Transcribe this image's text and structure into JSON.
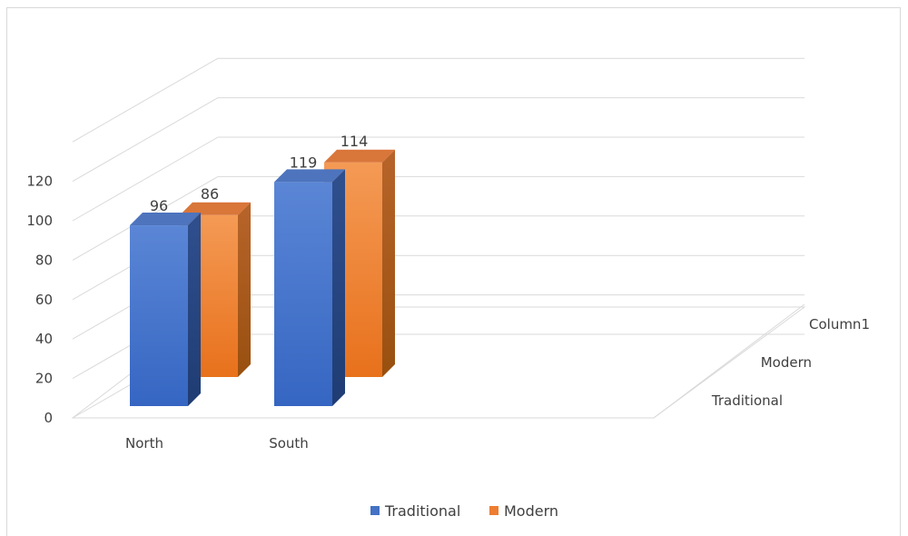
{
  "chart_data": {
    "type": "bar",
    "subtype": "3d-column",
    "title": "",
    "xlabel": "",
    "ylabel": "",
    "categories": [
      "North",
      "South"
    ],
    "series": [
      {
        "name": "Traditional",
        "values": [
          96,
          119
        ],
        "color": "#4472C4"
      },
      {
        "name": "Modern",
        "values": [
          86,
          114
        ],
        "color": "#ED7D31"
      }
    ],
    "depth_axis_labels": [
      "Traditional",
      "Modern",
      "Column1"
    ],
    "y_ticks": [
      0,
      20,
      40,
      60,
      80,
      100,
      120
    ],
    "ylim": [
      0,
      140
    ],
    "grid": true,
    "legend": {
      "position": "bottom",
      "entries": [
        "Traditional",
        "Modern"
      ]
    }
  }
}
